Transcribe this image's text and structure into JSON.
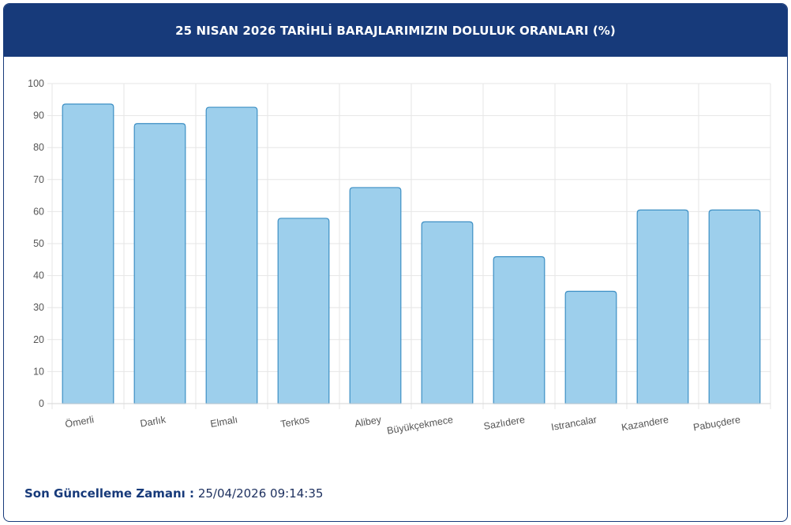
{
  "header": {
    "title": "25 NISAN 2026 TARİHLİ BARAJLARIMIZIN DOLULUK ORANLARI (%)"
  },
  "footer": {
    "label": "Son Güncelleme Zamanı :",
    "value": "25/04/2026 09:14:35"
  },
  "colors": {
    "header_bg": "#173a7a",
    "bar_fill": "#9dcfec",
    "bar_stroke": "#3d8fc4",
    "grid": "#e6e6e6"
  },
  "chart_data": {
    "type": "bar",
    "title": "25 NISAN 2026 TARİHLİ BARAJLARIMIZIN DOLULUK ORANLARI (%)",
    "categories": [
      "Ömerli",
      "Darlık",
      "Elmalı",
      "Terkos",
      "Alibey",
      "Büyükçekmece",
      "Sazlıdere",
      "Istrancalar",
      "Kazandere",
      "Pabuçdere"
    ],
    "values": [
      93.6,
      87.5,
      92.6,
      57.9,
      67.5,
      56.8,
      45.9,
      35.1,
      60.5,
      60.5
    ],
    "ylim": [
      0,
      100
    ],
    "yticks": [
      0,
      10,
      20,
      30,
      40,
      50,
      60,
      70,
      80,
      90,
      100
    ],
    "grid": true,
    "legend": "none"
  }
}
